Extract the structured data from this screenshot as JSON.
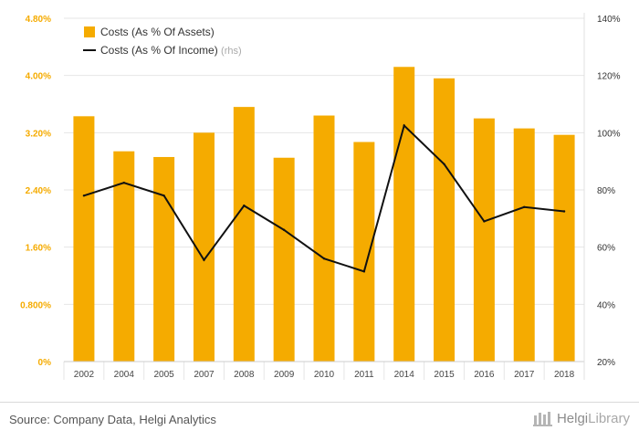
{
  "chart_data": {
    "type": "bar+line",
    "categories": [
      "2002",
      "2004",
      "2005",
      "2007",
      "2008",
      "2009",
      "2010",
      "2011",
      "2014",
      "2015",
      "2016",
      "2017",
      "2018"
    ],
    "series": [
      {
        "name": "Costs (As % Of Assets)",
        "kind": "bar",
        "axis": "left",
        "color": "#F5AB00",
        "values": [
          3.43,
          2.94,
          2.86,
          3.2,
          3.56,
          2.85,
          3.44,
          3.07,
          4.12,
          3.96,
          3.4,
          3.26,
          3.17
        ]
      },
      {
        "name": "Costs (As % Of Income)",
        "legend_suffix": "(rhs)",
        "kind": "line",
        "axis": "right",
        "color": "#111111",
        "values": [
          78.0,
          82.5,
          78.0,
          55.5,
          74.5,
          66.0,
          56.0,
          51.5,
          102.5,
          89.0,
          69.0,
          74.0,
          72.5
        ]
      }
    ],
    "left_axis": {
      "ylim": [
        0,
        4.8
      ],
      "ticks": [
        0,
        0.8,
        1.6,
        2.4,
        3.2,
        4.0,
        4.8
      ],
      "tick_labels": [
        "0%",
        "0.800%",
        "1.60%",
        "2.40%",
        "3.20%",
        "4.00%",
        "4.80%"
      ],
      "label_color": "#F5AB00"
    },
    "right_axis": {
      "ylim": [
        20,
        140
      ],
      "ticks": [
        20,
        40,
        60,
        80,
        100,
        120,
        140
      ],
      "tick_labels": [
        "20%",
        "40%",
        "60%",
        "80%",
        "100%",
        "120%",
        "140%"
      ],
      "label_color": "#333333"
    },
    "grid": true,
    "legend_position": "top-left"
  },
  "footer": {
    "source": "Source: Company Data, Helgi Analytics",
    "brand_helgi": "Helgi",
    "brand_library": "Library"
  }
}
